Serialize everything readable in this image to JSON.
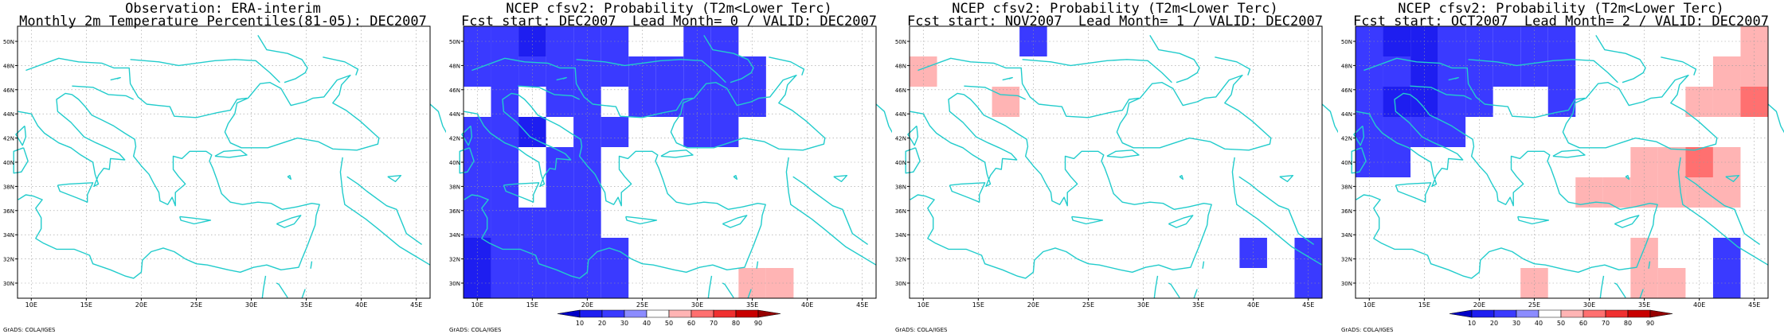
{
  "panels": [
    {
      "title_line1": "Observation: ERA-interim",
      "title_line2": "Monthly 2m Temperature Percentiles(81-05): DEC2007",
      "colorbar": false,
      "credit": "GrADS: COLA/IGES",
      "cells": []
    },
    {
      "title_line1": "NCEP cfsv2: Probability (T2m<Lower Terc)",
      "title_line2": "Fcst start: DEC2007  Lead Month= 0 / VALID: DEC2007",
      "colorbar": true,
      "credit": "GrADS: COLA/IGES",
      "cells": [
        {
          "lon": 10,
          "lat": 50,
          "c": "#3a3aff"
        },
        {
          "lon": 12.5,
          "lat": 50,
          "c": "#3a3aff"
        },
        {
          "lon": 15,
          "lat": 50,
          "c": "#1e1ef0"
        },
        {
          "lon": 17.5,
          "lat": 50,
          "c": "#3a3aff"
        },
        {
          "lon": 20,
          "lat": 50,
          "c": "#3a3aff"
        },
        {
          "lon": 22.5,
          "lat": 50,
          "c": "#3a3aff"
        },
        {
          "lon": 30,
          "lat": 50,
          "c": "#3a3aff"
        },
        {
          "lon": 32.5,
          "lat": 50,
          "c": "#3a3aff"
        },
        {
          "lon": 10,
          "lat": 47.5,
          "c": "#3a3aff"
        },
        {
          "lon": 12.5,
          "lat": 47.5,
          "c": "#3a3aff"
        },
        {
          "lon": 15,
          "lat": 47.5,
          "c": "#3a3aff"
        },
        {
          "lon": 17.5,
          "lat": 47.5,
          "c": "#3a3aff"
        },
        {
          "lon": 20,
          "lat": 47.5,
          "c": "#3a3aff"
        },
        {
          "lon": 22.5,
          "lat": 47.5,
          "c": "#3a3aff"
        },
        {
          "lon": 25,
          "lat": 47.5,
          "c": "#3a3aff"
        },
        {
          "lon": 27.5,
          "lat": 47.5,
          "c": "#3a3aff"
        },
        {
          "lon": 30,
          "lat": 47.5,
          "c": "#3a3aff"
        },
        {
          "lon": 32.5,
          "lat": 47.5,
          "c": "#3a3aff"
        },
        {
          "lon": 35,
          "lat": 47.5,
          "c": "#3a3aff"
        },
        {
          "lon": 12.5,
          "lat": 45,
          "c": "#3a3aff"
        },
        {
          "lon": 17.5,
          "lat": 45,
          "c": "#3a3aff"
        },
        {
          "lon": 20,
          "lat": 45,
          "c": "#3a3aff"
        },
        {
          "lon": 25,
          "lat": 45,
          "c": "#3a3aff"
        },
        {
          "lon": 27.5,
          "lat": 45,
          "c": "#3a3aff"
        },
        {
          "lon": 30,
          "lat": 45,
          "c": "#3a3aff"
        },
        {
          "lon": 32.5,
          "lat": 45,
          "c": "#3a3aff"
        },
        {
          "lon": 35,
          "lat": 45,
          "c": "#3a3aff"
        },
        {
          "lon": 10,
          "lat": 42.5,
          "c": "#3a3aff"
        },
        {
          "lon": 12.5,
          "lat": 42.5,
          "c": "#3a3aff"
        },
        {
          "lon": 15,
          "lat": 42.5,
          "c": "#1e1ef0"
        },
        {
          "lon": 20,
          "lat": 42.5,
          "c": "#3a3aff"
        },
        {
          "lon": 22.5,
          "lat": 42.5,
          "c": "#3a3aff"
        },
        {
          "lon": 30,
          "lat": 42.5,
          "c": "#3a3aff"
        },
        {
          "lon": 32.5,
          "lat": 42.5,
          "c": "#3a3aff"
        },
        {
          "lon": 10,
          "lat": 40,
          "c": "#3a3aff"
        },
        {
          "lon": 12.5,
          "lat": 40,
          "c": "#3a3aff"
        },
        {
          "lon": 17.5,
          "lat": 40,
          "c": "#3a3aff"
        },
        {
          "lon": 20,
          "lat": 40,
          "c": "#3a3aff"
        },
        {
          "lon": 10,
          "lat": 37.5,
          "c": "#3a3aff"
        },
        {
          "lon": 12.5,
          "lat": 37.5,
          "c": "#3a3aff"
        },
        {
          "lon": 17.5,
          "lat": 37.5,
          "c": "#3a3aff"
        },
        {
          "lon": 20,
          "lat": 37.5,
          "c": "#3a3aff"
        },
        {
          "lon": 10,
          "lat": 35,
          "c": "#3a3aff"
        },
        {
          "lon": 12.5,
          "lat": 35,
          "c": "#3a3aff"
        },
        {
          "lon": 15,
          "lat": 35,
          "c": "#3a3aff"
        },
        {
          "lon": 17.5,
          "lat": 35,
          "c": "#3a3aff"
        },
        {
          "lon": 20,
          "lat": 35,
          "c": "#3a3aff"
        },
        {
          "lon": 10,
          "lat": 32.5,
          "c": "#1e1ef0"
        },
        {
          "lon": 12.5,
          "lat": 32.5,
          "c": "#3a3aff"
        },
        {
          "lon": 15,
          "lat": 32.5,
          "c": "#3a3aff"
        },
        {
          "lon": 17.5,
          "lat": 32.5,
          "c": "#3a3aff"
        },
        {
          "lon": 20,
          "lat": 32.5,
          "c": "#3a3aff"
        },
        {
          "lon": 22.5,
          "lat": 32.5,
          "c": "#3a3aff"
        },
        {
          "lon": 10,
          "lat": 30,
          "c": "#1e1ef0"
        },
        {
          "lon": 12.5,
          "lat": 30,
          "c": "#3a3aff"
        },
        {
          "lon": 15,
          "lat": 30,
          "c": "#3a3aff"
        },
        {
          "lon": 17.5,
          "lat": 30,
          "c": "#3a3aff"
        },
        {
          "lon": 20,
          "lat": 30,
          "c": "#3a3aff"
        },
        {
          "lon": 22.5,
          "lat": 30,
          "c": "#3a3aff"
        },
        {
          "lon": 35,
          "lat": 30,
          "c": "#ffb4b4"
        },
        {
          "lon": 37.5,
          "lat": 30,
          "c": "#ffb4b4"
        }
      ]
    },
    {
      "title_line1": "NCEP cfsv2: Probability (T2m<Lower Terc)",
      "title_line2": "Fcst start: NOV2007  Lead Month= 1 / VALID: DEC2007",
      "colorbar": false,
      "credit": "GrADS: COLA/IGES",
      "cells": [
        {
          "lon": 20,
          "lat": 50,
          "c": "#3a3aff"
        },
        {
          "lon": 10,
          "lat": 47.5,
          "c": "#ffb4b4"
        },
        {
          "lon": 17.5,
          "lat": 45,
          "c": "#ffb4b4"
        },
        {
          "lon": 40,
          "lat": 32.5,
          "c": "#3a3aff"
        },
        {
          "lon": 45,
          "lat": 32.5,
          "c": "#3a3aff"
        },
        {
          "lon": 45,
          "lat": 30,
          "c": "#3a3aff"
        }
      ]
    },
    {
      "title_line1": "NCEP cfsv2: Probability (T2m<Lower Terc)",
      "title_line2": "Fcst start: OCT2007  Lead Month= 2 / VALID: DEC2007",
      "colorbar": true,
      "credit": "GrADS: COLA/IGES",
      "cells": [
        {
          "lon": 10,
          "lat": 50,
          "c": "#3a3aff"
        },
        {
          "lon": 12.5,
          "lat": 50,
          "c": "#1e1ef0"
        },
        {
          "lon": 15,
          "lat": 50,
          "c": "#1e1ef0"
        },
        {
          "lon": 17.5,
          "lat": 50,
          "c": "#3a3aff"
        },
        {
          "lon": 20,
          "lat": 50,
          "c": "#3a3aff"
        },
        {
          "lon": 22.5,
          "lat": 50,
          "c": "#3a3aff"
        },
        {
          "lon": 25,
          "lat": 50,
          "c": "#3a3aff"
        },
        {
          "lon": 27.5,
          "lat": 50,
          "c": "#3a3aff"
        },
        {
          "lon": 45,
          "lat": 50,
          "c": "#ffb4b4"
        },
        {
          "lon": 10,
          "lat": 47.5,
          "c": "#3a3aff"
        },
        {
          "lon": 12.5,
          "lat": 47.5,
          "c": "#3a3aff"
        },
        {
          "lon": 15,
          "lat": 47.5,
          "c": "#1e1ef0"
        },
        {
          "lon": 17.5,
          "lat": 47.5,
          "c": "#3a3aff"
        },
        {
          "lon": 20,
          "lat": 47.5,
          "c": "#3a3aff"
        },
        {
          "lon": 22.5,
          "lat": 47.5,
          "c": "#3a3aff"
        },
        {
          "lon": 25,
          "lat": 47.5,
          "c": "#3a3aff"
        },
        {
          "lon": 27.5,
          "lat": 47.5,
          "c": "#3a3aff"
        },
        {
          "lon": 42.5,
          "lat": 47.5,
          "c": "#ffb4b4"
        },
        {
          "lon": 45,
          "lat": 47.5,
          "c": "#ffb4b4"
        },
        {
          "lon": 10,
          "lat": 45,
          "c": "#3a3aff"
        },
        {
          "lon": 12.5,
          "lat": 45,
          "c": "#1e1ef0"
        },
        {
          "lon": 15,
          "lat": 45,
          "c": "#1e1ef0"
        },
        {
          "lon": 17.5,
          "lat": 45,
          "c": "#3a3aff"
        },
        {
          "lon": 20,
          "lat": 45,
          "c": "#3a3aff"
        },
        {
          "lon": 27.5,
          "lat": 45,
          "c": "#3a3aff"
        },
        {
          "lon": 40,
          "lat": 45,
          "c": "#ffb4b4"
        },
        {
          "lon": 42.5,
          "lat": 45,
          "c": "#ffb4b4"
        },
        {
          "lon": 45,
          "lat": 45,
          "c": "#ff7070"
        },
        {
          "lon": 10,
          "lat": 42.5,
          "c": "#3a3aff"
        },
        {
          "lon": 12.5,
          "lat": 42.5,
          "c": "#3a3aff"
        },
        {
          "lon": 15,
          "lat": 42.5,
          "c": "#3a3aff"
        },
        {
          "lon": 17.5,
          "lat": 42.5,
          "c": "#3a3aff"
        },
        {
          "lon": 10,
          "lat": 40,
          "c": "#3a3aff"
        },
        {
          "lon": 12.5,
          "lat": 40,
          "c": "#3a3aff"
        },
        {
          "lon": 35,
          "lat": 40,
          "c": "#ffb4b4"
        },
        {
          "lon": 37.5,
          "lat": 40,
          "c": "#ffb4b4"
        },
        {
          "lon": 40,
          "lat": 40,
          "c": "#ff7070"
        },
        {
          "lon": 42.5,
          "lat": 40,
          "c": "#ffb4b4"
        },
        {
          "lon": 30,
          "lat": 37.5,
          "c": "#ffb4b4"
        },
        {
          "lon": 32.5,
          "lat": 37.5,
          "c": "#ffb4b4"
        },
        {
          "lon": 35,
          "lat": 37.5,
          "c": "#ffb4b4"
        },
        {
          "lon": 37.5,
          "lat": 37.5,
          "c": "#ffb4b4"
        },
        {
          "lon": 40,
          "lat": 37.5,
          "c": "#ffb4b4"
        },
        {
          "lon": 42.5,
          "lat": 37.5,
          "c": "#ffb4b4"
        },
        {
          "lon": 42.5,
          "lat": 32.5,
          "c": "#3a3aff"
        },
        {
          "lon": 35,
          "lat": 32.5,
          "c": "#ffb4b4"
        },
        {
          "lon": 35,
          "lat": 30,
          "c": "#ffb4b4"
        },
        {
          "lon": 37.5,
          "lat": 30,
          "c": "#ffb4b4"
        },
        {
          "lon": 25,
          "lat": 30,
          "c": "#ffb4b4"
        },
        {
          "lon": 42.5,
          "lat": 30,
          "c": "#3a3aff"
        }
      ]
    }
  ],
  "axes": {
    "lon_ticks": [
      "10E",
      "15E",
      "20E",
      "25E",
      "30E",
      "35E",
      "40E",
      "45E"
    ],
    "lat_ticks": [
      "30N",
      "32N",
      "34N",
      "36N",
      "38N",
      "40N",
      "42N",
      "44N",
      "46N",
      "48N",
      "50N"
    ],
    "lon_min": 8.75,
    "lon_max": 46.25,
    "lat_min": 28.75,
    "lat_max": 51.25
  },
  "colorbar": {
    "labels": [
      "10",
      "20",
      "30",
      "40",
      "50",
      "60",
      "70",
      "80",
      "90"
    ],
    "colors": [
      "#0000c8",
      "#1e1ef0",
      "#3a3aff",
      "#8c8cff",
      "#ffffff",
      "#ffb4b4",
      "#ff7070",
      "#f03030",
      "#c80000",
      "#960000"
    ]
  },
  "colors": {
    "coast": "#22cccc",
    "grid": "#999999"
  }
}
